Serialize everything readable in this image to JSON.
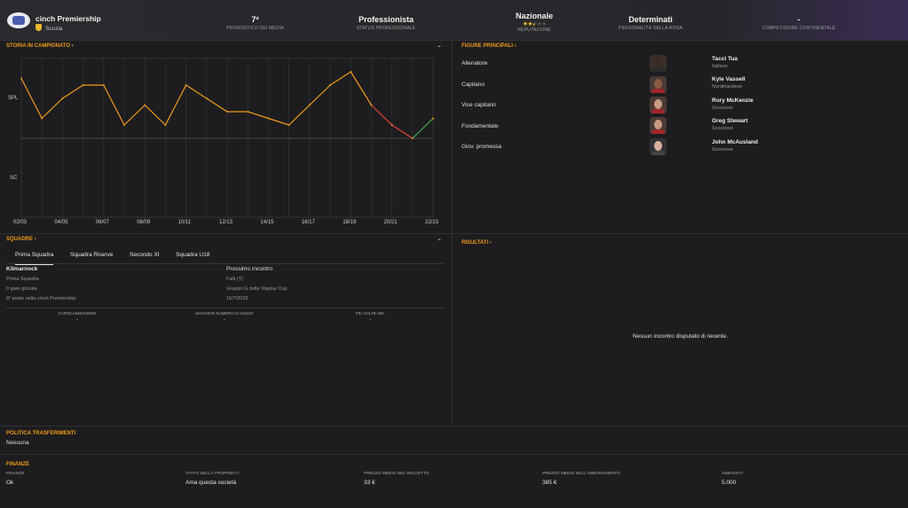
{
  "header": {
    "competition": "cinch Premiership",
    "nation": "Scozia",
    "stats": [
      {
        "value": "7º",
        "label": "PRONOSTICO DEI MEDIA"
      },
      {
        "value": "Professionista",
        "label": "STATUS PROFESSIONALE"
      },
      {
        "value": "Nazionale",
        "label": "REPUTAZIONE"
      },
      {
        "value": "Determinati",
        "label": "PERSONALITÀ DELLA ROSA"
      },
      {
        "value": "-",
        "label": "COMPETIZIONE CONTINENTALE"
      }
    ],
    "reputation_stars": 2.5
  },
  "history": {
    "title": "STORIA IN CAMPIONATO ›",
    "chevron": "⌄"
  },
  "chart_data": {
    "type": "line",
    "x": [
      "02/03",
      "03/04",
      "04/05",
      "05/06",
      "06/07",
      "07/08",
      "08/09",
      "09/10",
      "10/11",
      "11/12",
      "12/13",
      "13/14",
      "14/15",
      "15/16",
      "16/17",
      "17/18",
      "18/19",
      "19/20",
      "20/21",
      "21/22",
      "22/23"
    ],
    "x_tick_labels": [
      "02/03",
      "04/05",
      "06/07",
      "08/09",
      "10/11",
      "12/13",
      "14/15",
      "16/17",
      "18/19",
      "20/21",
      "22/23"
    ],
    "y_tick_labels": [
      "SPL",
      "SC"
    ],
    "y_inverted": true,
    "series": [
      {
        "values": [
          3,
          9,
          6,
          4,
          4,
          10,
          7,
          10,
          4,
          6,
          8,
          8,
          9,
          10,
          7,
          4,
          2,
          7,
          10,
          12,
          9
        ]
      }
    ],
    "colors": {
      "line": "#f19a1a",
      "down": "#e0453a",
      "up": "#4caf50"
    }
  },
  "squads": {
    "title": "SQUADRE ›",
    "chevron": "⌄",
    "tabs": [
      "Prima Squadra",
      "Squadra Riserve",
      "Secondo XI",
      "Squadra U18"
    ],
    "team_name": "Kilmarnock",
    "team_type": "Prima Squadra",
    "games": "0 gare giocate",
    "position": "6º posto nella cinch Premiership",
    "next_title": "Prossimo incontro",
    "next_opponent": "Falk (T)",
    "next_comp": "Gruppo G della Viaplay Cup",
    "next_date": "15/7/2023",
    "stats": [
      {
        "label": "CAPOCANNONIERE",
        "value": "-"
      },
      {
        "label": "MAGGIOR NUMERO DI ASSIST",
        "value": "-"
      },
      {
        "label": "PIÙ VOLTE MIC",
        "value": "-"
      }
    ]
  },
  "figures": {
    "title": "FIGURE PRINCIPALI ›",
    "items": [
      {
        "role": "Allenatore",
        "name": "Tacci Tua",
        "nationality": "Italiano"
      },
      {
        "role": "Capitano",
        "name": "Kyle Vassell",
        "nationality": "Nordirlandese"
      },
      {
        "role": "Vice capitano",
        "name": "Rory McKenzie",
        "nationality": "Scozzese"
      },
      {
        "role": "Fondamentale",
        "name": "Greg Stewart",
        "nationality": "Scozzese"
      },
      {
        "role": "Giov. promessa",
        "name": "John McAusland",
        "nationality": "Scozzese"
      }
    ]
  },
  "results": {
    "title": "RISULTATI ›",
    "empty": "Nessun incontro disputato di recente."
  },
  "transfer": {
    "title": "POLITICA TRASFERIMENTI",
    "value": "Nessuna"
  },
  "finance": {
    "title": "FINANZE",
    "items": [
      {
        "label": "FINANZE",
        "value": "Ok"
      },
      {
        "label": "STATO DELLA PROPRIETÀ",
        "value": "Ama questa società"
      },
      {
        "label": "PREZZO MEDIO DEL BIGLIETTO",
        "value": "33 €"
      },
      {
        "label": "PREZZO MEDIO DELL'ABBONAMENTO",
        "value": "385 €"
      },
      {
        "label": "ABBONATI",
        "value": "5.000"
      }
    ]
  }
}
